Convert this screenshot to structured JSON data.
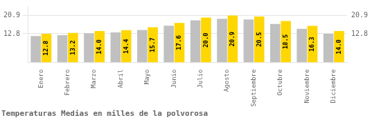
{
  "chart_data": {
    "type": "bar",
    "title": "Temperaturas Medias en milles de la polvorosa",
    "categories": [
      "Enero",
      "Febrero",
      "Marzo",
      "Abril",
      "Mayo",
      "Junio",
      "Julio",
      "Agosto",
      "Septiembre",
      "Octubre",
      "Noviembre",
      "Diciembre"
    ],
    "series": [
      {
        "color": "#C0C0C0",
        "values": [
          11.8,
          12.2,
          13.0,
          13.4,
          14.5,
          16.4,
          18.8,
          19.5,
          19.2,
          17.2,
          15.0,
          12.8
        ]
      },
      {
        "color": "#FFD700",
        "values": [
          12.8,
          13.2,
          14.0,
          14.4,
          15.7,
          17.6,
          20.0,
          20.9,
          20.5,
          18.5,
          16.3,
          14.0
        ],
        "data_labels": true,
        "value_labels": [
          "12.8",
          "13.2",
          "14.0",
          "14.4",
          "15.7",
          "17.6",
          "20.0",
          "20.9",
          "20.5",
          "18.5",
          "16.3",
          "14.0"
        ]
      }
    ],
    "ylim": [
      0,
      25.08
    ],
    "yticks": [
      12.8,
      20.9
    ],
    "grid": true
  }
}
